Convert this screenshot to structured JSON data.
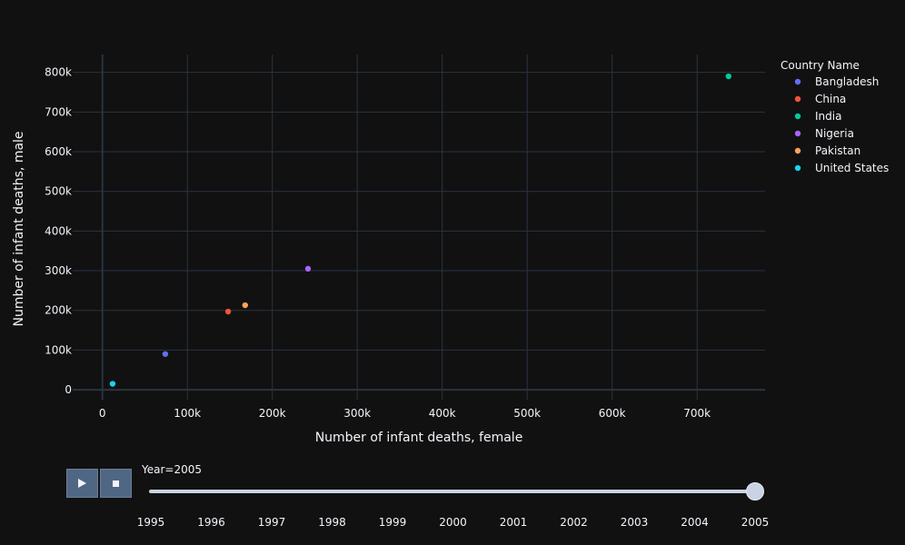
{
  "chart_data": {
    "type": "scatter",
    "xlabel": "Number of infant deaths, female",
    "ylabel": "Number of infant deaths, male",
    "xlim": [
      -35000,
      780000
    ],
    "ylim": [
      -25000,
      845000
    ],
    "xticks": [
      0,
      100000,
      200000,
      300000,
      400000,
      500000,
      600000,
      700000
    ],
    "xtick_labels": [
      "0",
      "100k",
      "200k",
      "300k",
      "400k",
      "500k",
      "600k",
      "700k"
    ],
    "yticks": [
      0,
      100000,
      200000,
      300000,
      400000,
      500000,
      600000,
      700000,
      800000
    ],
    "ytick_labels": [
      "0",
      "100k",
      "200k",
      "300k",
      "400k",
      "500k",
      "600k",
      "700k",
      "800k"
    ],
    "grid": true,
    "legend": {
      "title": "Country Name",
      "position": "right"
    },
    "series": [
      {
        "name": "Bangladesh",
        "color": "#636efa",
        "x": 74000,
        "y": 90000
      },
      {
        "name": "China",
        "color": "#EF553B",
        "x": 148000,
        "y": 197000
      },
      {
        "name": "India",
        "color": "#00cc96",
        "x": 737000,
        "y": 790000
      },
      {
        "name": "Nigeria",
        "color": "#ab63fa",
        "x": 242000,
        "y": 305000
      },
      {
        "name": "Pakistan",
        "color": "#FFA15A",
        "x": 168000,
        "y": 213000
      },
      {
        "name": "United States",
        "color": "#19d3f3",
        "x": 12000,
        "y": 15000
      }
    ]
  },
  "slider": {
    "current_label": "Year=2005",
    "years": [
      "1995",
      "1996",
      "1997",
      "1998",
      "1999",
      "2000",
      "2001",
      "2002",
      "2003",
      "2004",
      "2005"
    ],
    "selected_index": 10
  },
  "controls": {
    "play_icon": "play-icon",
    "stop_icon": "stop-icon"
  }
}
